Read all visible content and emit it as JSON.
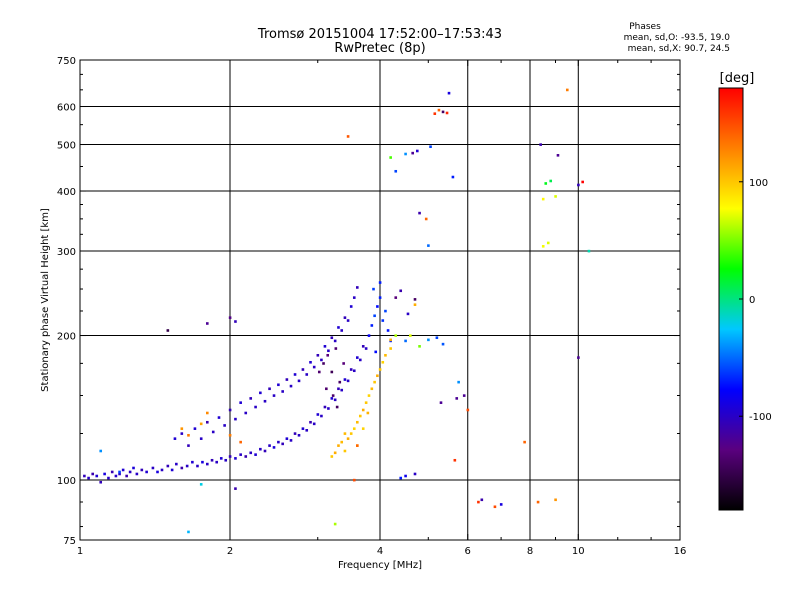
{
  "title": {
    "line1": "Tromsø 20151004 17:52:00–17:53:43",
    "line2": "RwPretec (8p)"
  },
  "stats": {
    "title": "Phases",
    "line1": "mean, sd,O: -93.5, 19.0",
    "line2": "mean, sd,X:  90.7, 24.5"
  },
  "chart_data": {
    "type": "scatter",
    "xlabel": "Frequency [MHz]",
    "ylabel": "Stationary phase Virtual Height [km]",
    "x_scale": "log",
    "y_scale": "log",
    "xlim": [
      1,
      16
    ],
    "ylim": [
      75,
      750
    ],
    "x_ticks": [
      1,
      2,
      4,
      6,
      8,
      10,
      16
    ],
    "x_tick_labels": [
      "1",
      "2",
      "4",
      "6",
      "8",
      "10",
      "16"
    ],
    "x_grid": [
      2,
      4,
      6,
      8,
      10
    ],
    "y_ticks": [
      75,
      100,
      200,
      300,
      400,
      500,
      600,
      750
    ],
    "y_tick_labels": [
      "75",
      "100",
      "200",
      "300",
      "400",
      "500",
      "600",
      "750"
    ],
    "y_grid": [
      100,
      200,
      300,
      400,
      500,
      600
    ],
    "grid": true,
    "colorbar": {
      "label": "[deg]",
      "range": [
        -180,
        180
      ],
      "ticks": [
        100,
        0,
        -100
      ],
      "tick_labels": [
        "100",
        "0",
        "-100"
      ],
      "colors": [
        "#000000",
        "#5a007f",
        "#0000ff",
        "#00c8ff",
        "#00ff00",
        "#ffff00",
        "#ff8000",
        "#ff0000"
      ]
    },
    "series": [
      {
        "points": [
          [
            1.02,
            102,
            -105
          ],
          [
            1.04,
            101,
            -100
          ],
          [
            1.06,
            103,
            -110
          ],
          [
            1.08,
            102,
            -95
          ],
          [
            1.1,
            99,
            -105
          ],
          [
            1.12,
            103,
            -90
          ],
          [
            1.14,
            101,
            -100
          ],
          [
            1.16,
            104,
            -108
          ],
          [
            1.18,
            102,
            -98
          ],
          [
            1.2,
            103,
            -100
          ],
          [
            1.22,
            105,
            -95
          ],
          [
            1.24,
            102,
            -110
          ],
          [
            1.26,
            104,
            -100
          ],
          [
            1.28,
            106,
            -92
          ],
          [
            1.3,
            103,
            -100
          ],
          [
            1.33,
            105,
            -105
          ],
          [
            1.36,
            104,
            -95
          ],
          [
            1.4,
            106,
            -100
          ],
          [
            1.43,
            104,
            -90
          ],
          [
            1.46,
            105,
            -100
          ],
          [
            1.5,
            107,
            -105
          ],
          [
            1.53,
            105,
            -95
          ],
          [
            1.56,
            108,
            -100
          ],
          [
            1.6,
            106,
            -110
          ],
          [
            1.64,
            107,
            -100
          ],
          [
            1.68,
            109,
            -95
          ],
          [
            1.72,
            107,
            -100
          ],
          [
            1.76,
            109,
            -90
          ],
          [
            1.8,
            108,
            -100
          ],
          [
            1.84,
            110,
            -105
          ],
          [
            1.88,
            109,
            -100
          ],
          [
            1.92,
            111,
            -95
          ],
          [
            1.96,
            110,
            -100
          ],
          [
            2.0,
            112,
            -105
          ],
          [
            2.05,
            111,
            -95
          ],
          [
            2.1,
            113,
            -100
          ],
          [
            2.15,
            112,
            -110
          ],
          [
            2.2,
            114,
            -100
          ],
          [
            2.25,
            113,
            -95
          ],
          [
            2.3,
            116,
            -100
          ],
          [
            2.35,
            115,
            -105
          ],
          [
            2.4,
            118,
            -100
          ],
          [
            2.45,
            117,
            -92
          ],
          [
            2.5,
            120,
            -100
          ],
          [
            2.55,
            119,
            -105
          ],
          [
            2.6,
            122,
            -95
          ],
          [
            2.65,
            121,
            -100
          ],
          [
            2.7,
            125,
            -105
          ],
          [
            2.75,
            124,
            -100
          ],
          [
            2.8,
            128,
            -95
          ],
          [
            2.85,
            127,
            -100
          ],
          [
            2.9,
            132,
            -108
          ],
          [
            2.95,
            131,
            -100
          ],
          [
            3.0,
            137,
            -95
          ],
          [
            3.05,
            136,
            -100
          ],
          [
            3.1,
            142,
            -105
          ],
          [
            3.15,
            141,
            -100
          ],
          [
            3.2,
            148,
            -95
          ],
          [
            3.25,
            147,
            -100
          ],
          [
            3.3,
            155,
            -105
          ],
          [
            3.35,
            154,
            -100
          ],
          [
            3.4,
            162,
            -95
          ],
          [
            3.45,
            161,
            -100
          ],
          [
            3.5,
            170,
            -105
          ],
          [
            3.55,
            169,
            -100
          ],
          [
            3.6,
            180,
            -95
          ],
          [
            3.65,
            178,
            -100
          ],
          [
            3.7,
            190,
            -105
          ],
          [
            3.75,
            188,
            -100
          ],
          [
            1.55,
            122,
            -95
          ],
          [
            1.6,
            125,
            -100
          ],
          [
            1.65,
            118,
            -105
          ],
          [
            1.7,
            128,
            -95
          ],
          [
            1.75,
            122,
            -100
          ],
          [
            1.8,
            132,
            -110
          ],
          [
            1.85,
            126,
            -100
          ],
          [
            1.9,
            135,
            -95
          ],
          [
            1.95,
            130,
            -100
          ],
          [
            2.0,
            140,
            -105
          ],
          [
            2.05,
            134,
            -100
          ],
          [
            2.1,
            145,
            -95
          ],
          [
            2.15,
            138,
            -100
          ],
          [
            2.2,
            148,
            -105
          ],
          [
            2.25,
            142,
            -100
          ],
          [
            2.3,
            152,
            -95
          ],
          [
            2.35,
            146,
            -100
          ],
          [
            2.4,
            155,
            -105
          ],
          [
            2.45,
            150,
            -100
          ],
          [
            2.5,
            158,
            -95
          ],
          [
            2.55,
            153,
            -100
          ],
          [
            2.6,
            162,
            -105
          ],
          [
            2.65,
            157,
            -100
          ],
          [
            2.7,
            166,
            -95
          ],
          [
            2.75,
            161,
            -100
          ],
          [
            2.8,
            170,
            -105
          ],
          [
            2.85,
            166,
            -100
          ],
          [
            2.9,
            176,
            -95
          ],
          [
            2.95,
            172,
            -100
          ],
          [
            3.0,
            182,
            -105
          ],
          [
            3.05,
            178,
            -100
          ],
          [
            3.1,
            190,
            -95
          ],
          [
            3.15,
            186,
            -100
          ],
          [
            3.2,
            198,
            -105
          ],
          [
            3.25,
            195,
            -100
          ],
          [
            3.3,
            208,
            -95
          ],
          [
            3.35,
            205,
            -100
          ],
          [
            3.4,
            218,
            -105
          ],
          [
            3.45,
            215,
            -100
          ],
          [
            3.5,
            230,
            -95
          ],
          [
            3.55,
            240,
            -100
          ],
          [
            3.6,
            252,
            -105
          ],
          [
            3.02,
            168,
            -135
          ],
          [
            3.08,
            175,
            -140
          ],
          [
            3.14,
            182,
            -130
          ],
          [
            3.2,
            168,
            -145
          ],
          [
            3.26,
            188,
            -135
          ],
          [
            3.32,
            160,
            -140
          ],
          [
            3.38,
            175,
            -130
          ],
          [
            3.22,
            150,
            -138
          ],
          [
            3.28,
            142,
            -142
          ],
          [
            3.12,
            155,
            -135
          ],
          [
            3.8,
            200,
            -80
          ],
          [
            3.85,
            210,
            -70
          ],
          [
            3.9,
            220,
            -60
          ],
          [
            3.95,
            230,
            -75
          ],
          [
            4.0,
            240,
            -70
          ],
          [
            4.05,
            215,
            -65
          ],
          [
            4.1,
            225,
            -60
          ],
          [
            4.15,
            205,
            -72
          ],
          [
            4.2,
            195,
            -68
          ],
          [
            3.88,
            250,
            -62
          ],
          [
            4.0,
            258,
            -70
          ],
          [
            3.92,
            185,
            -75
          ],
          [
            3.3,
            118,
            110
          ],
          [
            3.35,
            120,
            105
          ],
          [
            3.4,
            115,
            100
          ],
          [
            3.45,
            122,
            110
          ],
          [
            3.5,
            125,
            100
          ],
          [
            3.55,
            128,
            95
          ],
          [
            3.6,
            132,
            105
          ],
          [
            3.65,
            136,
            100
          ],
          [
            3.7,
            140,
            110
          ],
          [
            3.75,
            145,
            100
          ],
          [
            3.8,
            150,
            95
          ],
          [
            3.85,
            155,
            105
          ],
          [
            3.9,
            160,
            100
          ],
          [
            3.95,
            165,
            110
          ],
          [
            4.0,
            170,
            100
          ],
          [
            4.05,
            176,
            95
          ],
          [
            4.1,
            182,
            105
          ],
          [
            4.2,
            188,
            100
          ],
          [
            3.2,
            112,
            100
          ],
          [
            3.25,
            114,
            110
          ],
          [
            3.4,
            125,
            105
          ],
          [
            3.6,
            118,
            100
          ],
          [
            3.7,
            128,
            95
          ],
          [
            3.78,
            138,
            108
          ],
          [
            4.3,
            200,
            60
          ],
          [
            4.5,
            195,
            -50
          ],
          [
            4.8,
            190,
            50
          ],
          [
            5.0,
            196,
            -40
          ],
          [
            5.2,
            198,
            -60
          ],
          [
            5.35,
            192,
            -55
          ],
          [
            1.6,
            128,
            120
          ],
          [
            1.65,
            124,
            130
          ],
          [
            1.75,
            131,
            115
          ],
          [
            1.8,
            138,
            125
          ],
          [
            2.0,
            124,
            130
          ],
          [
            2.1,
            120,
            140
          ],
          [
            1.1,
            115,
            -40
          ],
          [
            1.2,
            104,
            -60
          ],
          [
            1.65,
            78,
            -30
          ],
          [
            1.75,
            98,
            -20
          ],
          [
            2.05,
            96,
            -110
          ],
          [
            1.5,
            205,
            -150
          ],
          [
            1.8,
            212,
            -120
          ],
          [
            2.0,
            218,
            -125
          ],
          [
            2.05,
            214,
            -105
          ],
          [
            3.45,
            520,
            145
          ],
          [
            4.2,
            470,
            40
          ],
          [
            4.3,
            440,
            -60
          ],
          [
            4.5,
            478,
            -40
          ],
          [
            4.65,
            480,
            -120
          ],
          [
            4.75,
            485,
            -95
          ],
          [
            4.8,
            360,
            -110
          ],
          [
            4.95,
            350,
            140
          ],
          [
            5.0,
            308,
            -50
          ],
          [
            5.05,
            495,
            -60
          ],
          [
            5.15,
            580,
            160
          ],
          [
            5.25,
            590,
            140
          ],
          [
            5.35,
            585,
            -140
          ],
          [
            5.45,
            582,
            165
          ],
          [
            5.5,
            640,
            -90
          ],
          [
            5.6,
            428,
            -70
          ],
          [
            5.75,
            160,
            -40
          ],
          [
            5.65,
            110,
            160
          ],
          [
            4.3,
            240,
            -130
          ],
          [
            4.4,
            248,
            -110
          ],
          [
            4.7,
            238,
            -140
          ],
          [
            4.55,
            222,
            -100
          ],
          [
            4.7,
            232,
            110
          ],
          [
            5.9,
            150,
            -120
          ],
          [
            6.0,
            140,
            150
          ],
          [
            5.7,
            148,
            -120
          ],
          [
            5.3,
            145,
            -120
          ],
          [
            4.4,
            101,
            -70
          ],
          [
            4.5,
            102,
            -85
          ],
          [
            4.7,
            103,
            -100
          ],
          [
            6.3,
            90,
            160
          ],
          [
            6.4,
            91,
            -110
          ],
          [
            6.8,
            88,
            150
          ],
          [
            7.0,
            89,
            -90
          ],
          [
            7.8,
            120,
            140
          ],
          [
            8.3,
            90,
            140
          ],
          [
            9.0,
            91,
            120
          ],
          [
            8.4,
            500,
            -110
          ],
          [
            8.6,
            415,
            20
          ],
          [
            8.8,
            420,
            10
          ],
          [
            9.1,
            475,
            -120
          ],
          [
            8.5,
            385,
            80
          ],
          [
            8.7,
            312,
            70
          ],
          [
            8.5,
            307,
            75
          ],
          [
            9.0,
            390,
            70
          ],
          [
            9.5,
            650,
            130
          ],
          [
            10.0,
            412,
            -105
          ],
          [
            10.2,
            418,
            180
          ],
          [
            10.5,
            300,
            -10
          ],
          [
            10.0,
            180,
            -120
          ],
          [
            3.25,
            81,
            60
          ],
          [
            3.6,
            118,
            140
          ],
          [
            3.55,
            100,
            150
          ],
          [
            4.2,
            196,
            110
          ],
          [
            4.6,
            200,
            70
          ]
        ]
      }
    ]
  }
}
